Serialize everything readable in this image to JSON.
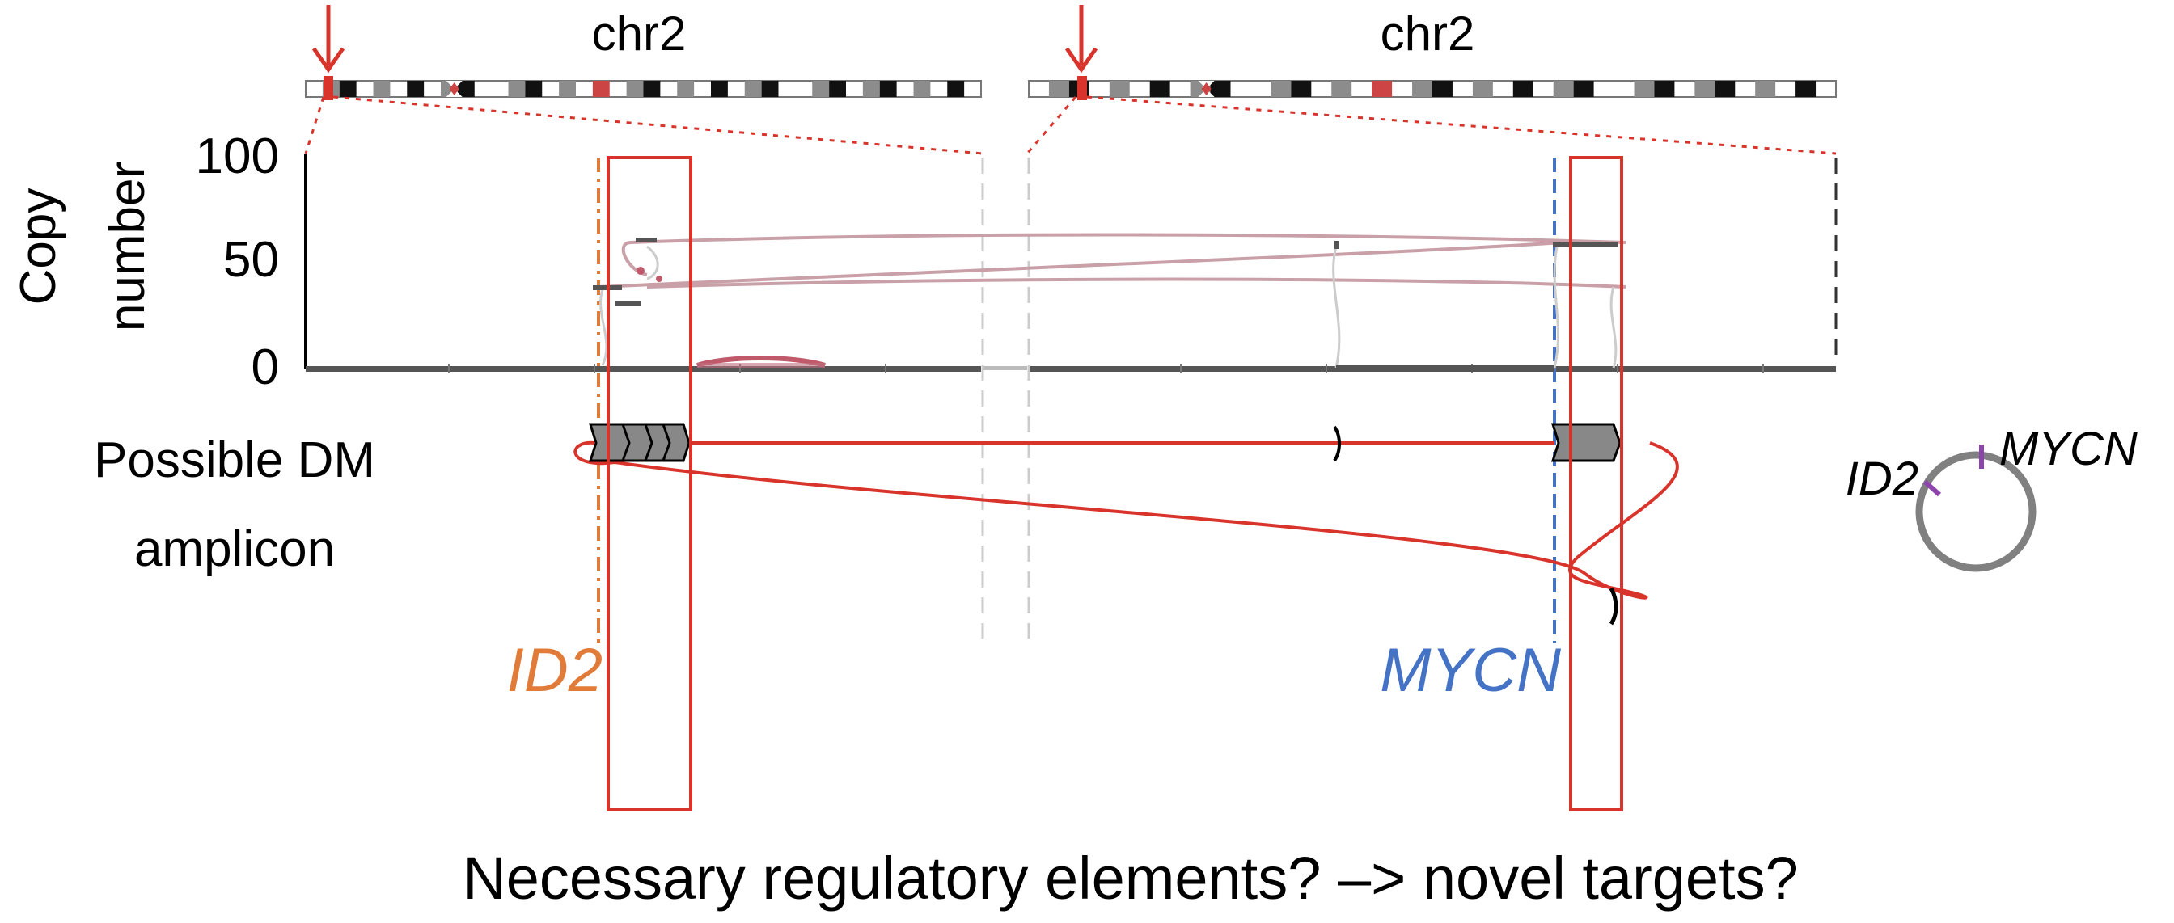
{
  "panels": [
    {
      "chromosome": "chr2"
    },
    {
      "chromosome": "chr2"
    }
  ],
  "y_axis": {
    "label_line1": "Copy",
    "label_line2": "number",
    "ticks": [
      "100",
      "50",
      "0"
    ]
  },
  "amplicon_label": {
    "line1": "Possible DM",
    "line2": "amplicon"
  },
  "genes": {
    "left": "ID2",
    "right": "MYCN",
    "left_color": "#e07b39",
    "right_color": "#4472c4"
  },
  "circle_diagram": {
    "left_label": "ID2",
    "right_label": "MYCN",
    "ring_color": "#808080",
    "mark_color": "#8e44ad"
  },
  "caption": "Necessary regulatory elements? –> novel targets?",
  "colors": {
    "highlight": "#d9342b",
    "arc": "#c9a0a8",
    "axis": "#555555",
    "segment_fill": "#888888"
  }
}
